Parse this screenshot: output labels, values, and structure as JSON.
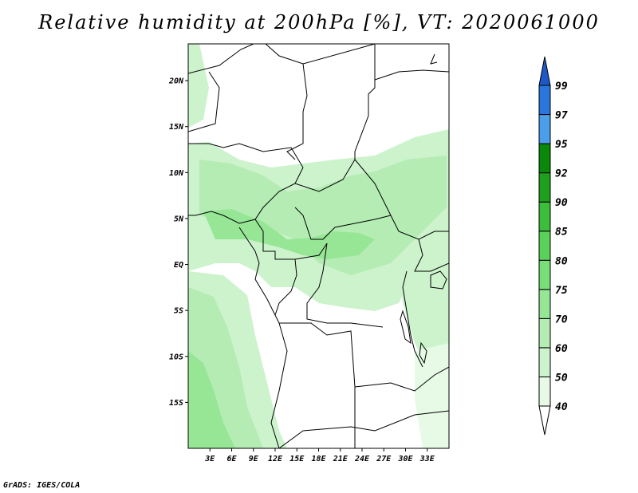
{
  "title": "Relative humidity at 200hPa [%], VT: 2020061000",
  "credit": "GrADS: IGES/COLA",
  "map": {
    "lon_range": [
      0,
      36
    ],
    "lat_range": [
      -20,
      24
    ],
    "lat_ticks": [
      {
        "value": 20,
        "label": "20N"
      },
      {
        "value": 15,
        "label": "15N"
      },
      {
        "value": 10,
        "label": "10N"
      },
      {
        "value": 5,
        "label": "5N"
      },
      {
        "value": 0,
        "label": "EQ"
      },
      {
        "value": -5,
        "label": "5S"
      },
      {
        "value": -10,
        "label": "10S"
      },
      {
        "value": -15,
        "label": "15S"
      }
    ],
    "lon_ticks": [
      {
        "value": 3,
        "label": "3E"
      },
      {
        "value": 6,
        "label": "6E"
      },
      {
        "value": 9,
        "label": "9E"
      },
      {
        "value": 12,
        "label": "12E"
      },
      {
        "value": 15,
        "label": "15E"
      },
      {
        "value": 18,
        "label": "18E"
      },
      {
        "value": 21,
        "label": "21E"
      },
      {
        "value": 24,
        "label": "24E"
      },
      {
        "value": 27,
        "label": "27E"
      },
      {
        "value": 30,
        "label": "30E"
      },
      {
        "value": 33,
        "label": "33E"
      }
    ]
  },
  "colorbar": {
    "levels": [
      "40",
      "50",
      "60",
      "70",
      "75",
      "80",
      "85",
      "90",
      "92",
      "95",
      "97",
      "99"
    ],
    "colors": [
      "#ffffff",
      "#e6fae6",
      "#cdf3cd",
      "#b4ecb4",
      "#96e696",
      "#78de78",
      "#5ad25a",
      "#3cbe3c",
      "#1ea01e",
      "#0a880a",
      "#4a9eea",
      "#2a76dc",
      "#1e58c8"
    ]
  }
}
